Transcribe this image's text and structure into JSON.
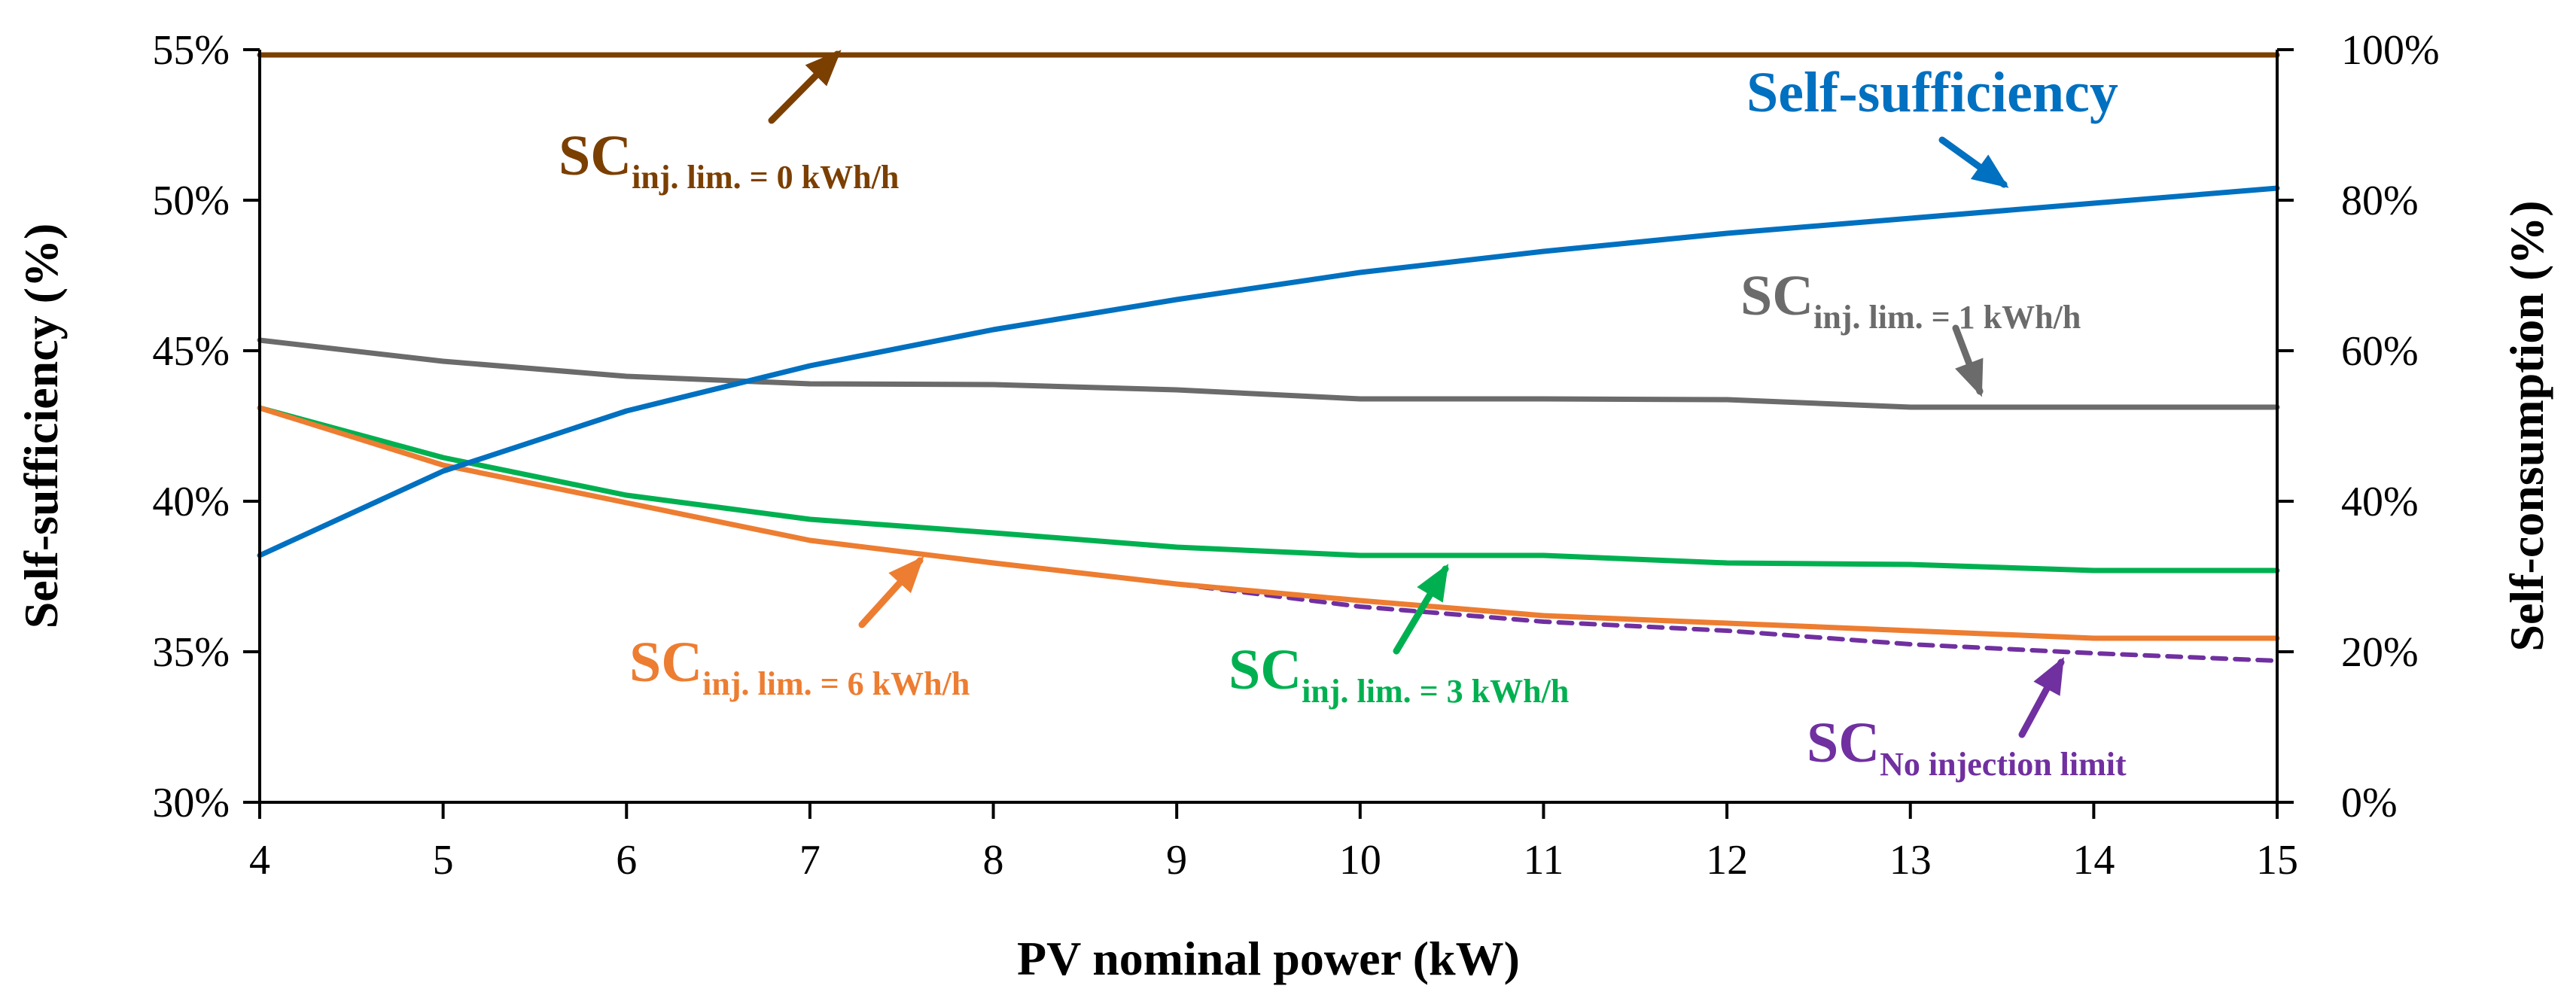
{
  "chart_data": {
    "type": "line",
    "title": "",
    "xlabel": "PV nominal power (kW)",
    "ylabel_left": "Self-sufficiency (%)",
    "ylabel_right": "Self-consumption (%)",
    "x": [
      4,
      5,
      6,
      7,
      8,
      9,
      10,
      11,
      12,
      13,
      14,
      15
    ],
    "x_ticks": [
      "4",
      "5",
      "6",
      "7",
      "8",
      "9",
      "10",
      "11",
      "12",
      "13",
      "14",
      "15"
    ],
    "xlim": [
      4,
      15
    ],
    "ylim_left": [
      30,
      55
    ],
    "ylim_right": [
      0,
      100
    ],
    "y_left_ticks": [
      "30%",
      "35%",
      "40%",
      "45%",
      "50%",
      "55%"
    ],
    "y_right_ticks": [
      "0%",
      "20%",
      "40%",
      "60%",
      "80%",
      "100%"
    ],
    "series": [
      {
        "name": "Self-sufficiency",
        "axis": "left",
        "color": "#0070C0",
        "dashed": false,
        "values": [
          38.2,
          41.0,
          43.0,
          44.5,
          45.7,
          46.7,
          47.6,
          48.3,
          48.9,
          49.4,
          49.9,
          50.4
        ]
      },
      {
        "name": "SC inj. lim. = 0 kWh/h",
        "axis": "right",
        "color": "#7B3F00",
        "dashed": false,
        "values": [
          99.3,
          99.3,
          99.3,
          99.3,
          99.3,
          99.3,
          99.3,
          99.3,
          99.3,
          99.3,
          99.3,
          99.3
        ]
      },
      {
        "name": "SC inj. lim. = 1 kWh/h",
        "axis": "right",
        "color": "#6B6B6B",
        "dashed": false,
        "values": [
          61.4,
          58.6,
          56.6,
          55.6,
          55.5,
          54.8,
          53.6,
          53.6,
          53.5,
          52.5,
          52.5,
          52.5
        ]
      },
      {
        "name": "SC inj. lim. = 3 kWh/h",
        "axis": "right",
        "color": "#00B050",
        "dashed": false,
        "values": [
          52.4,
          45.8,
          40.8,
          37.6,
          35.8,
          33.9,
          32.8,
          32.8,
          31.8,
          31.6,
          30.8,
          30.8
        ]
      },
      {
        "name": "SC inj. lim. = 6 kWh/h",
        "axis": "right",
        "color": "#ED7D31",
        "dashed": false,
        "values": [
          52.4,
          44.8,
          39.8,
          34.8,
          31.8,
          29.0,
          26.8,
          24.8,
          23.8,
          22.8,
          21.8,
          21.8
        ]
      },
      {
        "name": "SC No injection limit",
        "axis": "right",
        "color": "#7030A0",
        "dashed": true,
        "values": [
          null,
          null,
          null,
          null,
          null,
          29.0,
          26.0,
          24.0,
          22.8,
          21.0,
          19.8,
          18.8
        ]
      }
    ],
    "annotations": [
      {
        "main": "SC",
        "sub": "inj. lim. = 0 kWh/h",
        "color": "#7B3F00"
      },
      {
        "main": "Self-sufficiency",
        "sub": "",
        "color": "#0070C0"
      },
      {
        "main": "SC",
        "sub": "inj. lim. = 1 kWh/h",
        "color": "#6B6B6B"
      },
      {
        "main": "SC",
        "sub": "inj. lim. = 6 kWh/h",
        "color": "#ED7D31"
      },
      {
        "main": "SC",
        "sub": "inj. lim. = 3 kWh/h",
        "color": "#00B050"
      },
      {
        "main": "SC",
        "sub": "No injection limit",
        "color": "#7030A0"
      }
    ]
  }
}
